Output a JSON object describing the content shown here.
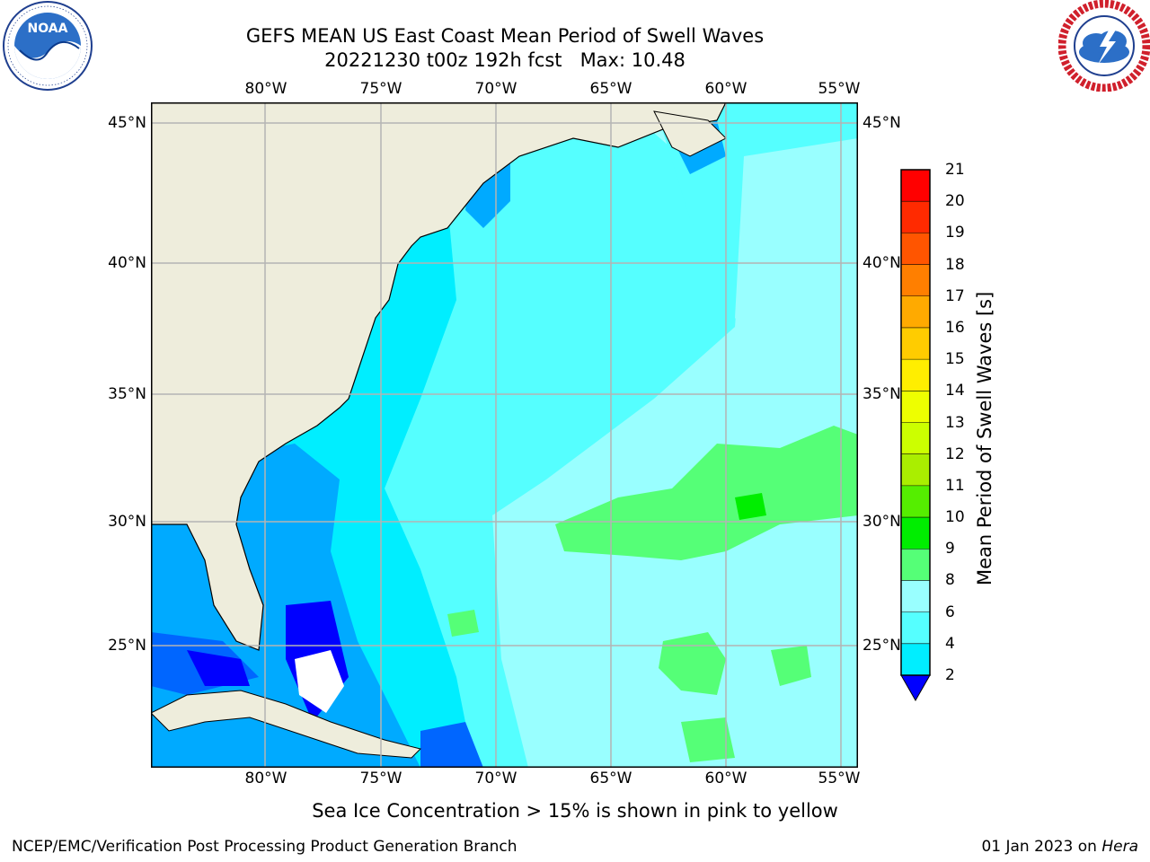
{
  "header": {
    "title_line1": "GEFS MEAN US East Coast Mean Period of Swell Waves",
    "title_line2": "20221230 t00z 192h fcst   Max: 10.48"
  },
  "logos": {
    "left": "NOAA",
    "left_ring": "NATIONAL OCEANIC AND ATMOSPHERIC ADMINISTRATION · U.S. DEPARTMENT OF COMMERCE",
    "right_ring": "NATIONAL WEATHER SERVICE"
  },
  "map": {
    "lon_labels": [
      "80°W",
      "75°W",
      "70°W",
      "65°W",
      "60°W",
      "55°W"
    ],
    "lat_labels": [
      "45°N",
      "40°N",
      "35°N",
      "30°N",
      "25°N"
    ],
    "grid": true,
    "land_color": "#eeeddc",
    "gridline_color": "#b4b4b4"
  },
  "colorbar": {
    "title": "Mean Period of Swell Waves [s]",
    "labels": [
      "21",
      "20",
      "19",
      "18",
      "17",
      "16",
      "15",
      "14",
      "13",
      "12",
      "11",
      "10",
      "9",
      "8",
      "6",
      "4",
      "2"
    ],
    "colors_top_to_bottom": [
      "#ff0000",
      "#ff2a00",
      "#ff5500",
      "#ff7f00",
      "#ffaa00",
      "#ffcc00",
      "#ffee00",
      "#eeff00",
      "#ccff00",
      "#aaee00",
      "#55ee00",
      "#00ee00",
      "#55ff77",
      "#99ffff",
      "#55ffff",
      "#00eeff",
      "#00aaff",
      "#0066ff"
    ],
    "underflow_color": "#0000ff"
  },
  "notes": {
    "sea_ice": "Sea Ice Concentration > 15% is shown in pink to yellow"
  },
  "footer": {
    "left": "NCEP/EMC/Verification Post Processing Product Generation Branch",
    "right_date": "01 Jan 2023 on ",
    "right_machine": "Hera"
  }
}
